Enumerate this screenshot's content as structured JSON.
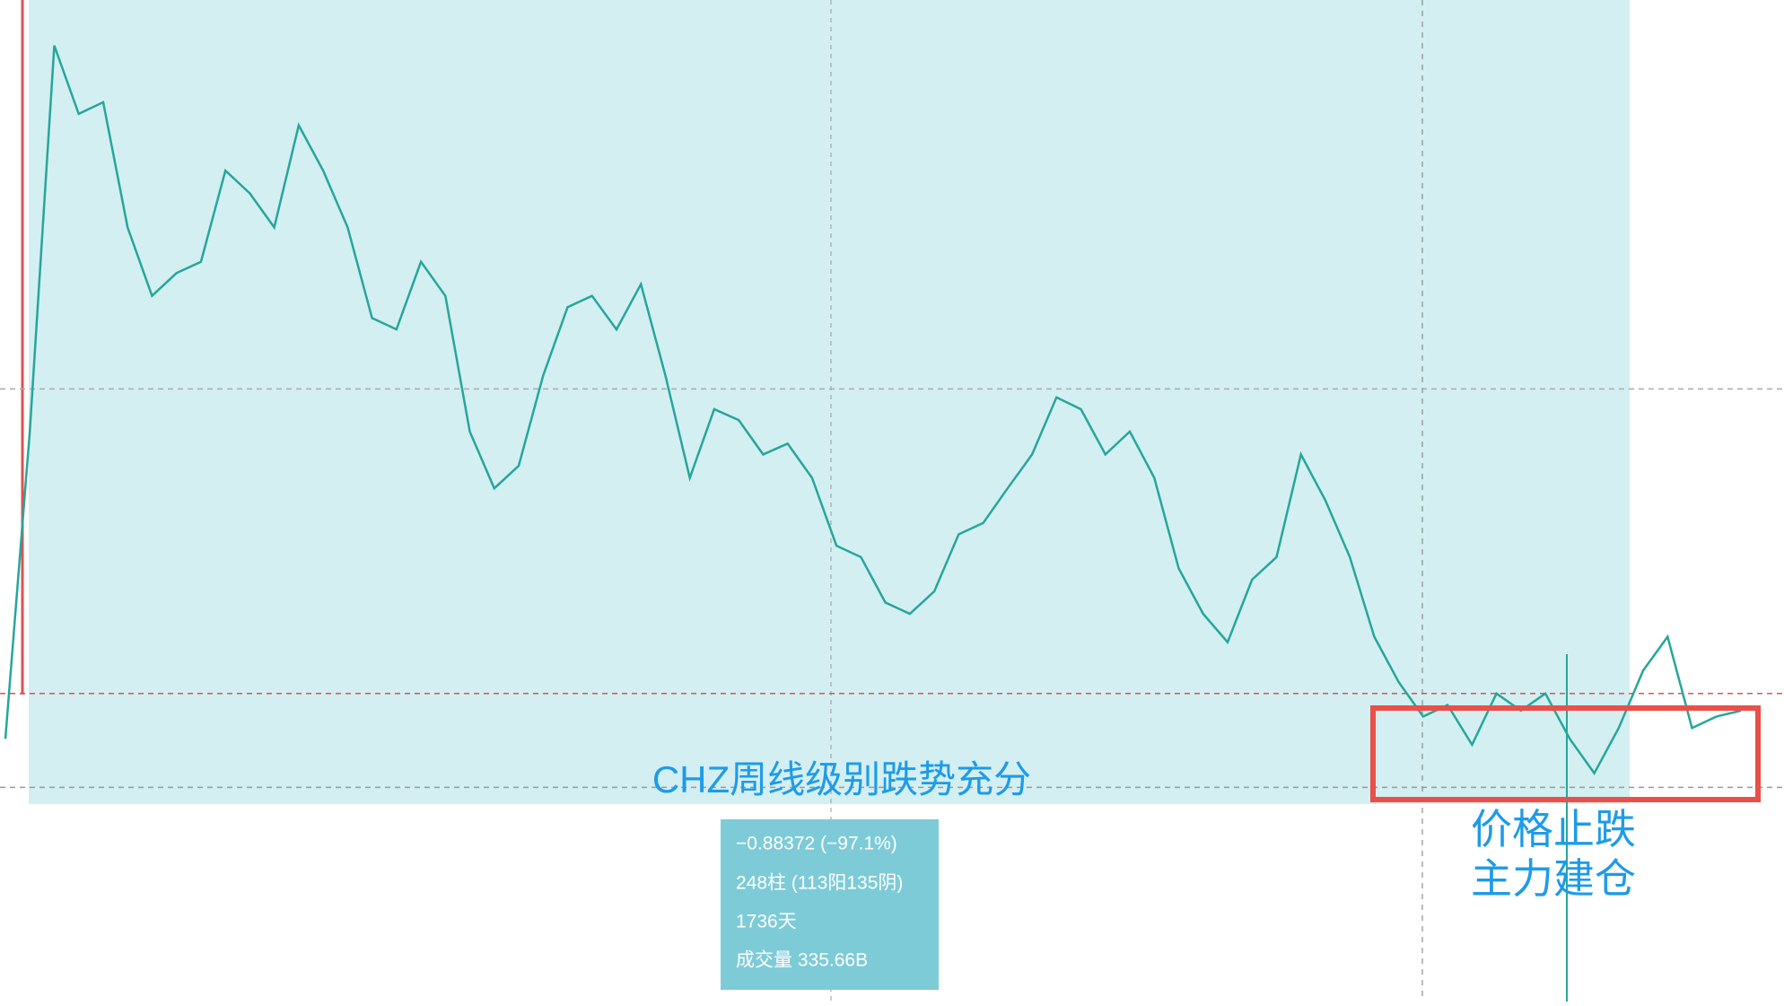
{
  "chart_data": {
    "type": "line",
    "title": "CHZ周线级别跌势充分",
    "annotations": [
      "价格止跌",
      "主力建仓"
    ],
    "measure": [
      "−0.88372 (−97.1%)",
      "248柱 (113阳135阴)",
      "1736天",
      "成交量 335.66B"
    ],
    "log_scale": true,
    "ylim": [
      0.026,
      0.91
    ],
    "color": "#26a69a",
    "hlines": [
      {
        "value": 0.0424,
        "color": "#e05050"
      },
      {
        "value": 0.028,
        "color": "#999999"
      },
      {
        "value": 0.163,
        "color": "#aaaaaa"
      }
    ],
    "values": [
      0.0347,
      0.135,
      0.744,
      0.55,
      0.579,
      0.333,
      0.246,
      0.272,
      0.286,
      0.428,
      0.387,
      0.333,
      0.523,
      0.428,
      0.333,
      0.223,
      0.212,
      0.286,
      0.246,
      0.135,
      0.105,
      0.116,
      0.173,
      0.234,
      0.246,
      0.212,
      0.259,
      0.173,
      0.11,
      0.149,
      0.142,
      0.122,
      0.128,
      0.11,
      0.0815,
      0.0775,
      0.0634,
      0.0603,
      0.0666,
      0.0857,
      0.0901,
      0.105,
      0.122,
      0.157,
      0.149,
      0.122,
      0.135,
      0.11,
      0.0737,
      0.0603,
      0.0532,
      0.0701,
      0.0775,
      0.122,
      0.0996,
      0.0775,
      0.0545,
      0.0446,
      0.0383,
      0.0403,
      0.0338,
      0.0424,
      0.0393,
      0.0424,
      0.0347,
      0.0298,
      0.0364,
      0.0469,
      0.0545,
      0.0364,
      0.0383,
      0.0393
    ]
  }
}
